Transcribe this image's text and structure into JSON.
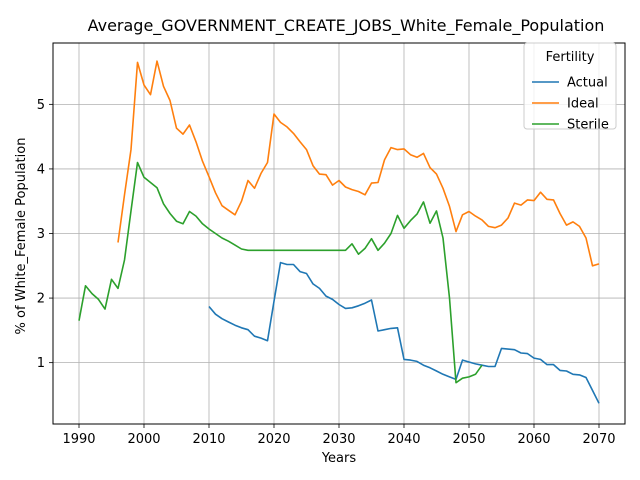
{
  "chart_data": {
    "type": "line",
    "title": "Average_GOVERNMENT_CREATE_JOBS_White_Female_Population",
    "xlabel": "Years",
    "ylabel": "% of White_Female Population",
    "xlim": [
      1986,
      2074
    ],
    "ylim": [
      0.05,
      5.95
    ],
    "xticks": [
      1990,
      2000,
      2010,
      2020,
      2030,
      2040,
      2050,
      2060,
      2070
    ],
    "yticks": [
      1,
      2,
      3,
      4,
      5
    ],
    "grid": true,
    "legend": {
      "title": "Fertility",
      "position": "top-right"
    },
    "series": [
      {
        "name": "Actual",
        "color": "#1f77b4",
        "x": [
          2010,
          2011,
          2012,
          2013,
          2014,
          2015,
          2016,
          2017,
          2018,
          2019,
          2020,
          2021,
          2022,
          2023,
          2024,
          2025,
          2026,
          2027,
          2028,
          2029,
          2030,
          2031,
          2032,
          2033,
          2034,
          2035,
          2036,
          2037,
          2038,
          2039,
          2040,
          2041,
          2042,
          2043,
          2044,
          2045,
          2046,
          2047,
          2048,
          2049,
          2050,
          2051,
          2052,
          2053,
          2054,
          2055,
          2056,
          2057,
          2058,
          2059,
          2060,
          2061,
          2062,
          2063,
          2064,
          2065,
          2066,
          2067,
          2068,
          2069,
          2070
        ],
        "y": [
          1.87,
          1.75,
          1.68,
          1.63,
          1.58,
          1.54,
          1.51,
          1.41,
          1.38,
          1.34,
          1.95,
          2.55,
          2.52,
          2.52,
          2.41,
          2.38,
          2.22,
          2.15,
          2.03,
          1.98,
          1.9,
          1.84,
          1.85,
          1.88,
          1.92,
          1.97,
          1.49,
          1.51,
          1.53,
          1.54,
          1.05,
          1.04,
          1.02,
          0.96,
          0.92,
          0.87,
          0.82,
          0.78,
          0.74,
          1.04,
          1.01,
          0.98,
          0.96,
          0.94,
          0.94,
          1.22,
          1.21,
          1.2,
          1.15,
          1.14,
          1.07,
          1.05,
          0.97,
          0.97,
          0.88,
          0.87,
          0.82,
          0.81,
          0.77,
          0.57,
          0.37
        ]
      },
      {
        "name": "Ideal",
        "color": "#ff7f0e",
        "x": [
          1996,
          1997,
          1998,
          1999,
          2000,
          2001,
          2002,
          2003,
          2004,
          2005,
          2006,
          2007,
          2008,
          2009,
          2010,
          2011,
          2012,
          2013,
          2014,
          2015,
          2016,
          2017,
          2018,
          2019,
          2020,
          2021,
          2022,
          2023,
          2024,
          2025,
          2026,
          2027,
          2028,
          2029,
          2030,
          2031,
          2032,
          2033,
          2034,
          2035,
          2036,
          2037,
          2038,
          2039,
          2040,
          2041,
          2042,
          2043,
          2044,
          2045,
          2046,
          2047,
          2048,
          2049,
          2050,
          2051,
          2052,
          2053,
          2054,
          2055,
          2056,
          2057,
          2058,
          2059,
          2060,
          2061,
          2062,
          2063,
          2064,
          2065,
          2066,
          2067,
          2068,
          2069,
          2070
        ],
        "y": [
          2.86,
          3.6,
          4.3,
          5.65,
          5.3,
          5.15,
          5.67,
          5.28,
          5.06,
          4.63,
          4.54,
          4.68,
          4.42,
          4.12,
          3.88,
          3.63,
          3.43,
          3.36,
          3.29,
          3.5,
          3.82,
          3.7,
          3.93,
          4.1,
          4.85,
          4.72,
          4.65,
          4.55,
          4.42,
          4.3,
          4.05,
          3.92,
          3.91,
          3.75,
          3.82,
          3.72,
          3.68,
          3.65,
          3.6,
          3.78,
          3.79,
          4.14,
          4.33,
          4.3,
          4.31,
          4.22,
          4.18,
          4.24,
          4.02,
          3.92,
          3.7,
          3.42,
          3.03,
          3.29,
          3.34,
          3.27,
          3.21,
          3.11,
          3.09,
          3.13,
          3.24,
          3.47,
          3.44,
          3.52,
          3.51,
          3.64,
          3.53,
          3.52,
          3.31,
          3.13,
          3.18,
          3.11,
          2.93,
          2.5,
          2.53
        ]
      },
      {
        "name": "Sterile",
        "color": "#2ca02c",
        "x": [
          1990,
          1991,
          1992,
          1993,
          1994,
          1995,
          1996,
          1997,
          1998,
          1999,
          2000,
          2001,
          2002,
          2003,
          2004,
          2005,
          2006,
          2007,
          2008,
          2009,
          2010,
          2011,
          2012,
          2013,
          2014,
          2015,
          2016,
          2017,
          2018,
          2019,
          2020,
          2021,
          2022,
          2023,
          2024,
          2025,
          2026,
          2027,
          2028,
          2029,
          2030,
          2031,
          2032,
          2033,
          2034,
          2035,
          2036,
          2037,
          2038,
          2039,
          2040,
          2041,
          2042,
          2043,
          2044,
          2045,
          2046,
          2047,
          2048,
          2049,
          2050,
          2051,
          2052
        ],
        "y": [
          1.65,
          2.19,
          2.07,
          1.98,
          1.83,
          2.29,
          2.15,
          2.59,
          3.35,
          4.1,
          3.87,
          3.79,
          3.71,
          3.46,
          3.31,
          3.19,
          3.15,
          3.34,
          3.27,
          3.15,
          3.07,
          3.0,
          2.93,
          2.88,
          2.82,
          2.76,
          2.74,
          2.74,
          2.74,
          2.74,
          2.74,
          2.74,
          2.74,
          2.74,
          2.74,
          2.74,
          2.74,
          2.74,
          2.74,
          2.74,
          2.74,
          2.74,
          2.84,
          2.68,
          2.77,
          2.92,
          2.74,
          2.85,
          3.0,
          3.28,
          3.08,
          3.2,
          3.3,
          3.49,
          3.16,
          3.35,
          2.93,
          2.0,
          0.69,
          0.76,
          0.78,
          0.82,
          0.96
        ]
      }
    ]
  }
}
